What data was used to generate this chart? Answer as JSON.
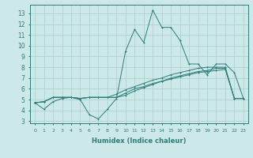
{
  "xlabel": "Humidex (Indice chaleur)",
  "ylabel": "",
  "background_color": "#cce8e8",
  "line_color": "#2d7d78",
  "grid_color": "#aacece",
  "x_ticks": [
    0,
    1,
    2,
    3,
    4,
    5,
    6,
    7,
    8,
    9,
    10,
    11,
    12,
    13,
    14,
    15,
    16,
    17,
    18,
    19,
    20,
    21,
    22,
    23
  ],
  "y_ticks": [
    3,
    4,
    5,
    6,
    7,
    8,
    9,
    10,
    11,
    12,
    13
  ],
  "ylim": [
    2.8,
    13.8
  ],
  "xlim": [
    -0.5,
    23.5
  ],
  "series": [
    [
      4.7,
      4.1,
      4.8,
      5.1,
      5.2,
      5.0,
      3.6,
      3.2,
      4.1,
      5.1,
      9.5,
      11.5,
      10.3,
      13.3,
      11.7,
      11.7,
      10.5,
      8.3,
      8.3,
      7.3,
      8.3,
      8.3,
      7.5,
      5.1
    ],
    [
      4.7,
      4.8,
      5.2,
      5.2,
      5.2,
      5.1,
      5.2,
      5.2,
      5.2,
      5.2,
      5.4,
      5.8,
      6.1,
      6.4,
      6.7,
      6.9,
      7.1,
      7.3,
      7.5,
      7.6,
      7.7,
      7.8,
      5.1,
      5.1
    ],
    [
      4.7,
      4.8,
      5.2,
      5.2,
      5.2,
      5.1,
      5.2,
      5.2,
      5.2,
      5.2,
      5.6,
      6.0,
      6.2,
      6.5,
      6.7,
      7.0,
      7.2,
      7.4,
      7.6,
      7.7,
      7.9,
      7.9,
      5.1,
      5.1
    ],
    [
      4.7,
      4.8,
      5.2,
      5.2,
      5.2,
      5.1,
      5.2,
      5.2,
      5.2,
      5.5,
      5.9,
      6.2,
      6.5,
      6.8,
      7.0,
      7.3,
      7.5,
      7.7,
      7.9,
      8.0,
      8.0,
      8.0,
      5.1,
      5.1
    ]
  ],
  "figsize": [
    3.2,
    2.0
  ],
  "dpi": 100,
  "xlabel_fontsize": 6,
  "tick_fontsize_x": 4.5,
  "tick_fontsize_y": 5.5
}
